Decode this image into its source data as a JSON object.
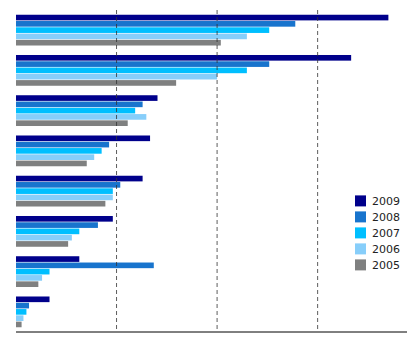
{
  "chart_data": {
    "type": "bar",
    "orientation": "horizontal",
    "categories": [
      null,
      null,
      null,
      null,
      null,
      null,
      null,
      null
    ],
    "series": [
      {
        "name": "2009",
        "color": "#00008B",
        "values": [
          100,
          90,
          38,
          36,
          34,
          26,
          17,
          9
        ]
      },
      {
        "name": "2008",
        "color": "#1874CD",
        "values": [
          75,
          68,
          34,
          25,
          28,
          22,
          37,
          3.5
        ]
      },
      {
        "name": "2007",
        "color": "#00BFFF",
        "values": [
          68,
          62,
          32,
          23,
          26,
          17,
          9,
          2.8
        ]
      },
      {
        "name": "2006",
        "color": "#87CEFA",
        "values": [
          62,
          54,
          35,
          21,
          26,
          15,
          7,
          2
        ]
      },
      {
        "name": "2005",
        "color": "#7F8080",
        "values": [
          55,
          43,
          30,
          19,
          24,
          14,
          6,
          1.5
        ]
      }
    ],
    "xlim": [
      0,
      105
    ],
    "xticks": [
      27,
      54,
      81
    ],
    "grid": true,
    "tick_labels": false,
    "legend": "right"
  }
}
